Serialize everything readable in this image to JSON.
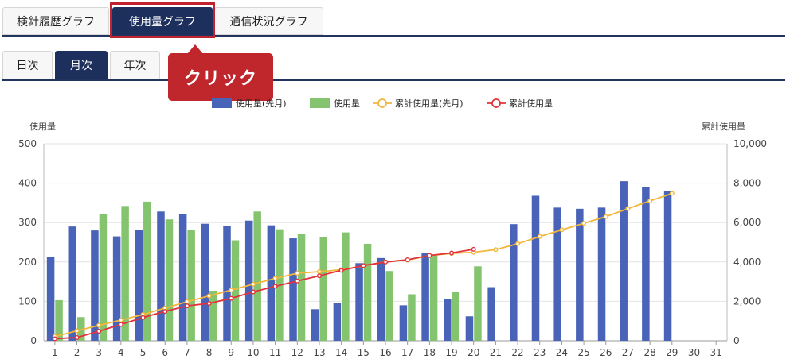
{
  "top_tabs": [
    {
      "label": "検針履歴グラフ",
      "active": false
    },
    {
      "label": "使用量グラフ",
      "active": true
    },
    {
      "label": "通信状況グラフ",
      "active": false
    }
  ],
  "period_tabs": [
    {
      "label": "日次",
      "active": false
    },
    {
      "label": "月次",
      "active": true
    },
    {
      "label": "年次",
      "active": false
    }
  ],
  "callout": {
    "label": "クリック"
  },
  "colors": {
    "accent": "#1d2f5c",
    "callout": "#c0272d",
    "bar_prev": "#4863b7",
    "bar_curr": "#85c46e",
    "line_prev": "#f2b63b",
    "line_curr": "#e3333a"
  },
  "chart_data": {
    "type": "bar",
    "y_left_title": "使用量",
    "y_right_title": "累計使用量",
    "ylim": [
      0,
      500
    ],
    "ylim_right": [
      0,
      10000
    ],
    "y_ticks": [
      "0",
      "100",
      "200",
      "300",
      "400",
      "500"
    ],
    "y_right_ticks": [
      "0",
      "2,000",
      "4,000",
      "6,000",
      "8,000",
      "10,000"
    ],
    "categories": [
      "1",
      "2",
      "3",
      "4",
      "5",
      "6",
      "7",
      "8",
      "9",
      "10",
      "11",
      "12",
      "13",
      "14",
      "15",
      "16",
      "17",
      "18",
      "19",
      "20",
      "21",
      "22",
      "23",
      "24",
      "25",
      "26",
      "27",
      "28",
      "29",
      "30",
      "31"
    ],
    "grid": true,
    "legend_position": "top-center",
    "series": [
      {
        "name": "使用量(先月)",
        "kind": "bar",
        "values": [
          213,
          290,
          280,
          265,
          282,
          328,
          322,
          297,
          292,
          305,
          293,
          260,
          80,
          96,
          197,
          210,
          90,
          223,
          106,
          62,
          136,
          296,
          368,
          338,
          335,
          338,
          405,
          390,
          381,
          null,
          null
        ]
      },
      {
        "name": "使用量",
        "kind": "bar",
        "values": [
          103,
          60,
          322,
          342,
          353,
          308,
          281,
          127,
          255,
          328,
          283,
          271,
          264,
          275,
          246,
          177,
          118,
          217,
          125,
          189,
          null,
          null,
          null,
          null,
          null,
          null,
          null,
          null,
          null,
          null,
          null
        ]
      },
      {
        "name": "累計使用量(先月)",
        "kind": "line",
        "axis": "right",
        "values": [
          213,
          503,
          783,
          1048,
          1330,
          1658,
          1980,
          2277,
          2569,
          2874,
          3167,
          3427,
          3507,
          3603,
          3800,
          4010,
          4100,
          4323,
          4429,
          4491,
          4627,
          4923,
          5291,
          5629,
          5964,
          6302,
          6707,
          7097,
          7478,
          null,
          null
        ]
      },
      {
        "name": "累計使用量",
        "kind": "line",
        "axis": "right",
        "values": [
          103,
          163,
          485,
          827,
          1180,
          1488,
          1769,
          1896,
          2151,
          2479,
          2762,
          3033,
          3297,
          3572,
          3818,
          3995,
          4113,
          4330,
          4455,
          4644,
          null,
          null,
          null,
          null,
          null,
          null,
          null,
          null,
          null,
          null,
          null
        ]
      }
    ]
  }
}
